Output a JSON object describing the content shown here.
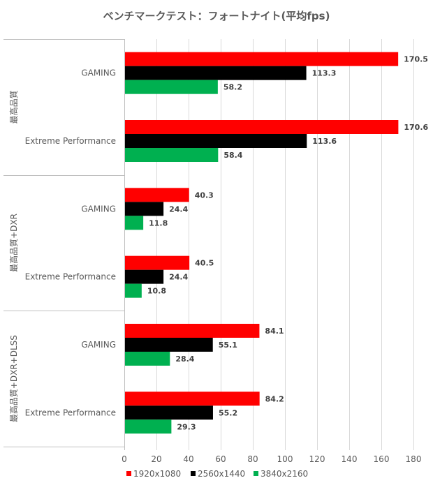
{
  "chart_data": {
    "type": "bar",
    "orientation": "horizontal",
    "title": "ベンチマークテスト：フォートナイト(平均fps)",
    "xlabel": "",
    "ylabel": "",
    "xlim": [
      0,
      180
    ],
    "x_ticks": [
      0,
      20,
      40,
      60,
      80,
      100,
      120,
      140,
      160,
      180
    ],
    "grid": true,
    "legend_position": "bottom",
    "groups": [
      {
        "label": "最高品質",
        "categories": [
          "GAMING",
          "Extreme Performance"
        ]
      },
      {
        "label": "最高品質+DXR",
        "categories": [
          "GAMING",
          "Extreme Performance"
        ]
      },
      {
        "label": "最高品質+DXR+DLSS",
        "categories": [
          "GAMING",
          "Extreme Performance"
        ]
      }
    ],
    "categories": [
      "GAMING",
      "Extreme Performance",
      "GAMING",
      "Extreme Performance",
      "GAMING",
      "Extreme Performance"
    ],
    "series": [
      {
        "name": "1920x1080",
        "color": "#ff0000",
        "values": [
          170.5,
          170.6,
          40.3,
          40.5,
          84.1,
          84.2
        ]
      },
      {
        "name": "2560x1440",
        "color": "#000000",
        "values": [
          113.3,
          113.6,
          24.4,
          24.4,
          55.1,
          55.2
        ]
      },
      {
        "name": "3840x2160",
        "color": "#00b050",
        "values": [
          58.2,
          58.4,
          11.8,
          10.8,
          28.4,
          29.3
        ]
      }
    ]
  }
}
